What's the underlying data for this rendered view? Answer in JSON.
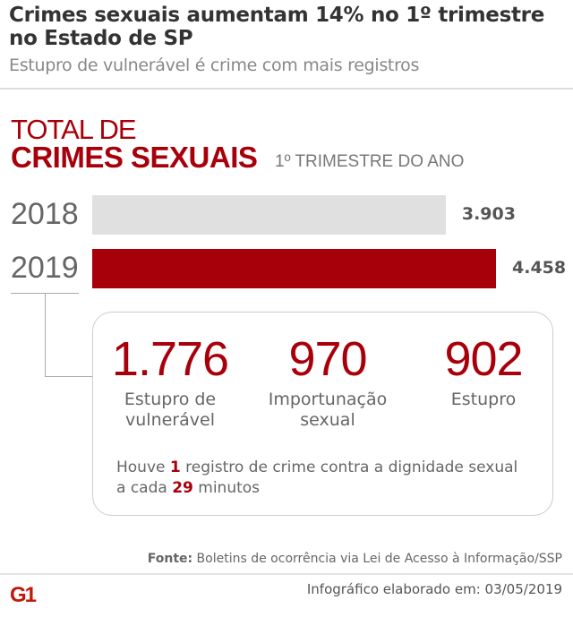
{
  "header": {
    "title": "Crimes sexuais aumentam 14% no 1º trimestre no Estado de SP",
    "subtitle": "Estupro de vulnerável é crime com mais registros"
  },
  "chart_data": {
    "type": "bar",
    "title_line1": "TOTAL DE",
    "title_line2": "CRIMES SEXUAIS",
    "subtitle": "1º TRIMESTRE DO ANO",
    "categories": [
      "2018",
      "2019"
    ],
    "values": [
      3903,
      4458
    ],
    "value_labels": [
      "3.903",
      "4.458"
    ],
    "colors": [
      "#e0e0e0",
      "#a8000a"
    ]
  },
  "breakdown": {
    "items": [
      {
        "value": "1.776",
        "label1": "Estupro de",
        "label2": "vulnerável"
      },
      {
        "value": "970",
        "label1": "Importunação",
        "label2": "sexual"
      },
      {
        "value": "902",
        "label1": "Estupro",
        "label2": ""
      }
    ],
    "note_prefix": "Houve ",
    "note_num1": "1",
    "note_mid": " registro de crime contra a dignidade sexual",
    "note_line2_prefix": "a cada ",
    "note_num2": "29",
    "note_suffix": " minutos"
  },
  "footer": {
    "source_label": "Fonte:",
    "source_text": " Boletins de ocorrência via Lei de Acesso à Informação/SSP",
    "logo": "G1",
    "made": "Infográfico elaborado em: 03/05/2019"
  },
  "accent": "#a8000a"
}
